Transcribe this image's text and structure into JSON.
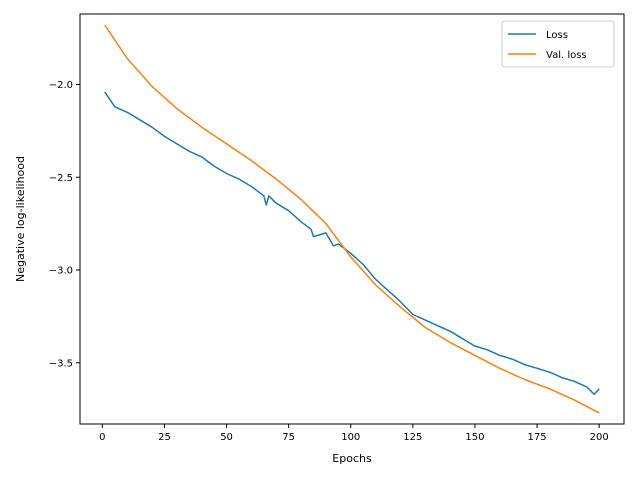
{
  "chart_data": {
    "type": "line",
    "title": "",
    "xlabel": "Epochs",
    "ylabel": "Negative log-likelihood",
    "xlim": [
      -9,
      210
    ],
    "ylim": [
      -3.83,
      -1.62
    ],
    "xticks": [
      0,
      25,
      50,
      75,
      100,
      125,
      150,
      175,
      200
    ],
    "xtick_labels": [
      "0",
      "25",
      "50",
      "75",
      "100",
      "125",
      "150",
      "175",
      "200"
    ],
    "yticks": [
      -3.5,
      -3.0,
      -2.5,
      -2.0
    ],
    "ytick_labels": [
      "−3.5",
      "−3.0",
      "−2.5",
      "−2.0"
    ],
    "grid": false,
    "legend_position": "top-right",
    "series": [
      {
        "name": "Loss",
        "color": "#1f77b4",
        "x": [
          1,
          5,
          10,
          15,
          20,
          25,
          30,
          35,
          40,
          45,
          50,
          55,
          60,
          65,
          66,
          67,
          70,
          75,
          80,
          84,
          85,
          90,
          93,
          95,
          100,
          105,
          110,
          115,
          120,
          125,
          130,
          135,
          140,
          145,
          150,
          155,
          160,
          165,
          170,
          175,
          180,
          185,
          190,
          195,
          198,
          200
        ],
        "y": [
          -2.04,
          -2.12,
          -2.15,
          -2.19,
          -2.23,
          -2.28,
          -2.32,
          -2.36,
          -2.39,
          -2.44,
          -2.48,
          -2.51,
          -2.55,
          -2.6,
          -2.65,
          -2.6,
          -2.64,
          -2.68,
          -2.74,
          -2.78,
          -2.82,
          -2.8,
          -2.87,
          -2.86,
          -2.91,
          -2.97,
          -3.05,
          -3.11,
          -3.17,
          -3.24,
          -3.27,
          -3.3,
          -3.33,
          -3.37,
          -3.41,
          -3.43,
          -3.46,
          -3.48,
          -3.51,
          -3.53,
          -3.55,
          -3.58,
          -3.6,
          -3.63,
          -3.67,
          -3.64
        ]
      },
      {
        "name": "Val. loss",
        "color": "#ff7f0e",
        "x": [
          1,
          10,
          20,
          30,
          40,
          50,
          60,
          70,
          80,
          90,
          100,
          110,
          120,
          130,
          140,
          150,
          160,
          170,
          180,
          190,
          200
        ],
        "y": [
          -1.68,
          -1.86,
          -2.01,
          -2.13,
          -2.23,
          -2.32,
          -2.41,
          -2.51,
          -2.62,
          -2.75,
          -2.93,
          -3.08,
          -3.2,
          -3.31,
          -3.39,
          -3.46,
          -3.53,
          -3.59,
          -3.64,
          -3.7,
          -3.77
        ]
      }
    ]
  }
}
